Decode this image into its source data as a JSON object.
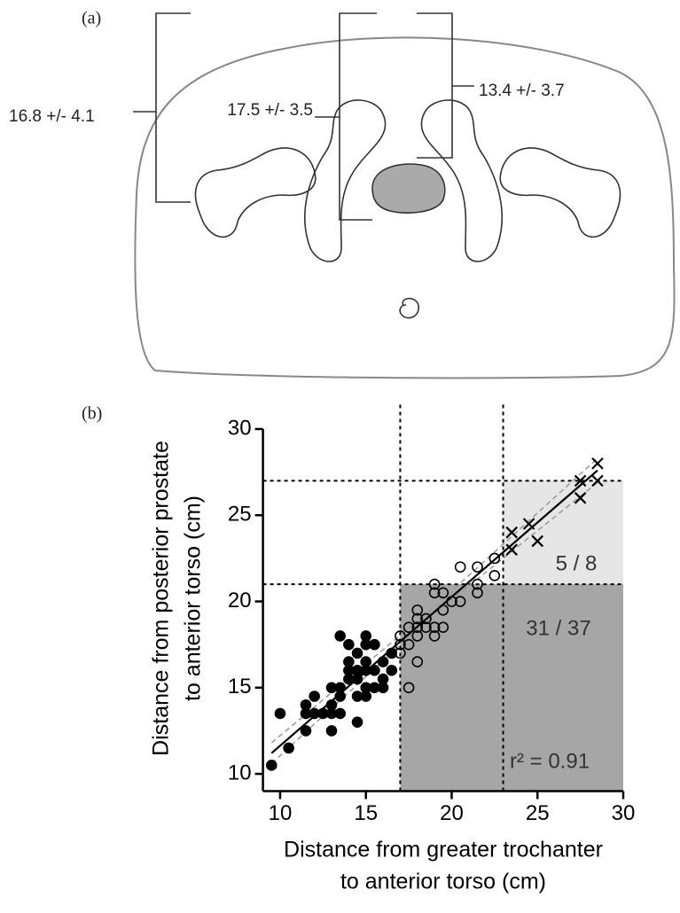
{
  "diagram": {
    "panel_label": "(a)",
    "measurements": [
      "16.8 +/- 4.1",
      "17.5 +/- 3.5",
      "13.4 +/- 3.7"
    ]
  },
  "chart_data": {
    "type": "scatter",
    "panel_label": "(b)",
    "x_label": [
      "Distance from greater trochanter",
      "to anterior torso (cm)"
    ],
    "y_label": [
      "Distance from posterior prostate",
      "to anterior torso  (cm)"
    ],
    "xlim": [
      9,
      30
    ],
    "ylim": [
      9,
      30
    ],
    "xticks": [
      10,
      15,
      20,
      25,
      30
    ],
    "yticks": [
      10,
      15,
      20,
      25,
      30
    ],
    "reference_lines": {
      "x": [
        17,
        23
      ],
      "y": [
        21,
        27
      ]
    },
    "shaded_regions": [
      {
        "x": [
          17,
          30
        ],
        "y": [
          9,
          21
        ],
        "color": "#a6a6a6"
      },
      {
        "x": [
          23,
          30
        ],
        "y": [
          21,
          27
        ],
        "color": "#e6e6e6"
      }
    ],
    "annotations": [
      "5 / 8",
      "31 / 37",
      "r² = 0.91"
    ],
    "fit": {
      "x": [
        9.5,
        28.5
      ],
      "y": [
        11.2,
        27.6
      ]
    },
    "confidence_band": {
      "x": [
        9.5,
        19,
        28.5
      ],
      "lower": [
        10.6,
        19.3,
        26.9
      ],
      "upper": [
        11.8,
        19.7,
        28.3
      ]
    },
    "series": [
      {
        "marker": "filled-circle",
        "color": "#000000",
        "x": [
          9.5,
          10,
          10.5,
          11.5,
          11.5,
          11.5,
          12,
          12,
          12.5,
          13,
          13,
          13,
          13.5,
          13.5,
          13.5,
          13.5,
          14,
          14,
          14,
          14.5,
          14.5,
          14.5,
          14.5,
          14.5,
          15,
          15,
          15,
          15,
          15,
          15.5,
          15.5,
          15.5,
          16,
          16,
          16,
          16.5,
          16.5,
          14,
          15,
          13
        ],
        "y": [
          10.5,
          13.5,
          11.5,
          12.5,
          13.5,
          14,
          13.5,
          14.5,
          13.5,
          12.5,
          13.5,
          15,
          13.5,
          14.5,
          18,
          15,
          16.5,
          17.5,
          15.5,
          13,
          14.5,
          15.5,
          16,
          17,
          16.5,
          15,
          18,
          14.5,
          17.5,
          15,
          16,
          17.5,
          15.5,
          15,
          16.5,
          16,
          17,
          16,
          16,
          14
        ]
      },
      {
        "marker": "open-circle",
        "color": "#000000",
        "x": [
          17,
          17,
          17,
          17.5,
          17.5,
          17.5,
          18,
          18,
          18,
          18,
          18.5,
          18.5,
          19,
          19,
          19,
          19,
          19.5,
          19.5,
          19.5,
          20,
          20.5,
          20.5,
          21.5,
          21.5,
          21.5,
          22.5,
          22.5,
          18
        ],
        "y": [
          17,
          17.5,
          18,
          15,
          17.5,
          18.5,
          16.5,
          18,
          18.5,
          19.5,
          18.5,
          19,
          18,
          18.5,
          20.5,
          21,
          19.5,
          18.5,
          20.5,
          20,
          20,
          22,
          20.5,
          21,
          22,
          21.5,
          22.5,
          19
        ]
      },
      {
        "marker": "cross",
        "color": "#000000",
        "x": [
          23.5,
          23.5,
          24.5,
          25,
          27.5,
          27.5,
          28.5,
          28.5
        ],
        "y": [
          23,
          24,
          24.5,
          23.5,
          26,
          27,
          27,
          28
        ]
      }
    ]
  }
}
